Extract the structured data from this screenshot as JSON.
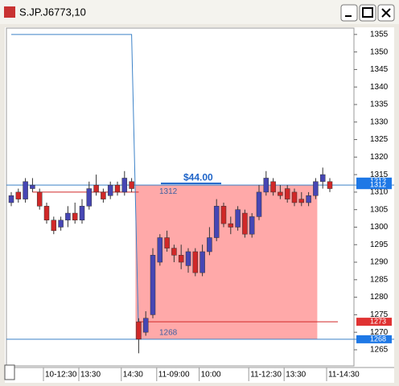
{
  "window": {
    "title": "S.JP.J6773,10"
  },
  "chart_data": {
    "type": "candlestick",
    "categories": [
      null,
      null,
      null,
      null,
      null,
      "10-12:30",
      null,
      null,
      null,
      null,
      "13:30",
      null,
      null,
      null,
      null,
      null,
      "14:30",
      null,
      null,
      null,
      null,
      "11-09:00",
      null,
      null,
      null,
      null,
      null,
      "10:00",
      null,
      null,
      null,
      null,
      null,
      null,
      "11-12:30",
      null,
      null,
      null,
      null,
      "13:30",
      null,
      null,
      null,
      null,
      null,
      "11-14:30"
    ],
    "open": [
      1307,
      1310,
      1308,
      1311,
      1310,
      1306,
      1302,
      1300,
      1302,
      1304,
      1302,
      1306,
      1312,
      1310,
      1309,
      1312,
      1310,
      1313,
      1273,
      1270,
      1275,
      1290,
      1297,
      1294,
      1292,
      1289,
      1293,
      1287,
      1293,
      1297,
      1306,
      1301,
      1300,
      1304,
      1298,
      1303,
      1310,
      1313,
      1310,
      1311,
      1310,
      1308,
      1307,
      1309,
      1313,
      1313
    ],
    "high": [
      1310,
      1311,
      1314,
      1314,
      1311,
      1307,
      1303,
      1303,
      1306,
      1307,
      1308,
      1313,
      1315,
      1311,
      1313,
      1313,
      1316,
      1314,
      1274,
      1276,
      1294,
      1298,
      1299,
      1295,
      1295,
      1294,
      1294,
      1295,
      1300,
      1308,
      1307,
      1303,
      1306,
      1305,
      1304,
      1312,
      1316,
      1314,
      1312,
      1312,
      1311,
      1310,
      1310,
      1314,
      1317,
      1314
    ],
    "low": [
      1306,
      1307,
      1307,
      1310,
      1305,
      1301,
      1298,
      1299,
      1300,
      1301,
      1301,
      1305,
      1309,
      1307,
      1308,
      1309,
      1309,
      1310,
      1264,
      1269,
      1274,
      1289,
      1293,
      1290,
      1288,
      1287,
      1286,
      1286,
      1292,
      1296,
      1300,
      1298,
      1299,
      1297,
      1297,
      1302,
      1309,
      1309,
      1308,
      1307,
      1306,
      1306,
      1306,
      1308,
      1311,
      1310
    ],
    "close": [
      1309,
      1308,
      1313,
      1312,
      1306,
      1302,
      1299,
      1302,
      1304,
      1302,
      1306,
      1311,
      1310,
      1308,
      1312,
      1310,
      1314,
      1311,
      1268,
      1274,
      1292,
      1297,
      1294,
      1292,
      1290,
      1293,
      1287,
      1293,
      1297,
      1306,
      1301,
      1300,
      1305,
      1298,
      1303,
      1310,
      1314,
      1310,
      1309,
      1308,
      1307,
      1307,
      1309,
      1313,
      1315,
      1311
    ],
    "up_color": "#4646b4",
    "down_color": "#d02828",
    "line": {
      "color": "#3c82c8",
      "values": [
        1355,
        1355,
        1355,
        1355,
        1355,
        1355,
        1355,
        1355,
        1355,
        1355,
        1355,
        1355,
        1355,
        1355,
        1355,
        1355,
        1355,
        1355,
        1268,
        null,
        null,
        null,
        null,
        null,
        null,
        null,
        null,
        null,
        null,
        null,
        null,
        null,
        null,
        null,
        null,
        null,
        null,
        null,
        null,
        null,
        null,
        null,
        null,
        null,
        null,
        null
      ]
    },
    "hlines": [
      {
        "value": 1312,
        "color": "#3c82c8"
      },
      {
        "value": 1268,
        "color": "#3c82c8"
      },
      {
        "value": 1310,
        "color": "#d02828"
      },
      {
        "value": 1273,
        "color": "#d02828"
      }
    ],
    "range_box": {
      "top": 1312,
      "bottom": 1268,
      "label": "$44.00",
      "color": "#ff8c8c"
    },
    "price_tags": [
      {
        "value": 1313,
        "color": "#1e78e6"
      },
      {
        "value": 1312,
        "color": "#1e78e6"
      },
      {
        "value": 1273,
        "color": "#e03232"
      },
      {
        "value": 1268,
        "color": "#1e78e6"
      }
    ],
    "ylim": [
      1260.4,
      1356.8
    ],
    "yticks": [
      1265,
      1270,
      1275,
      1280,
      1285,
      1290,
      1295,
      1300,
      1305,
      1310,
      1315,
      1320,
      1325,
      1330,
      1335,
      1340,
      1345,
      1350,
      1355
    ]
  }
}
